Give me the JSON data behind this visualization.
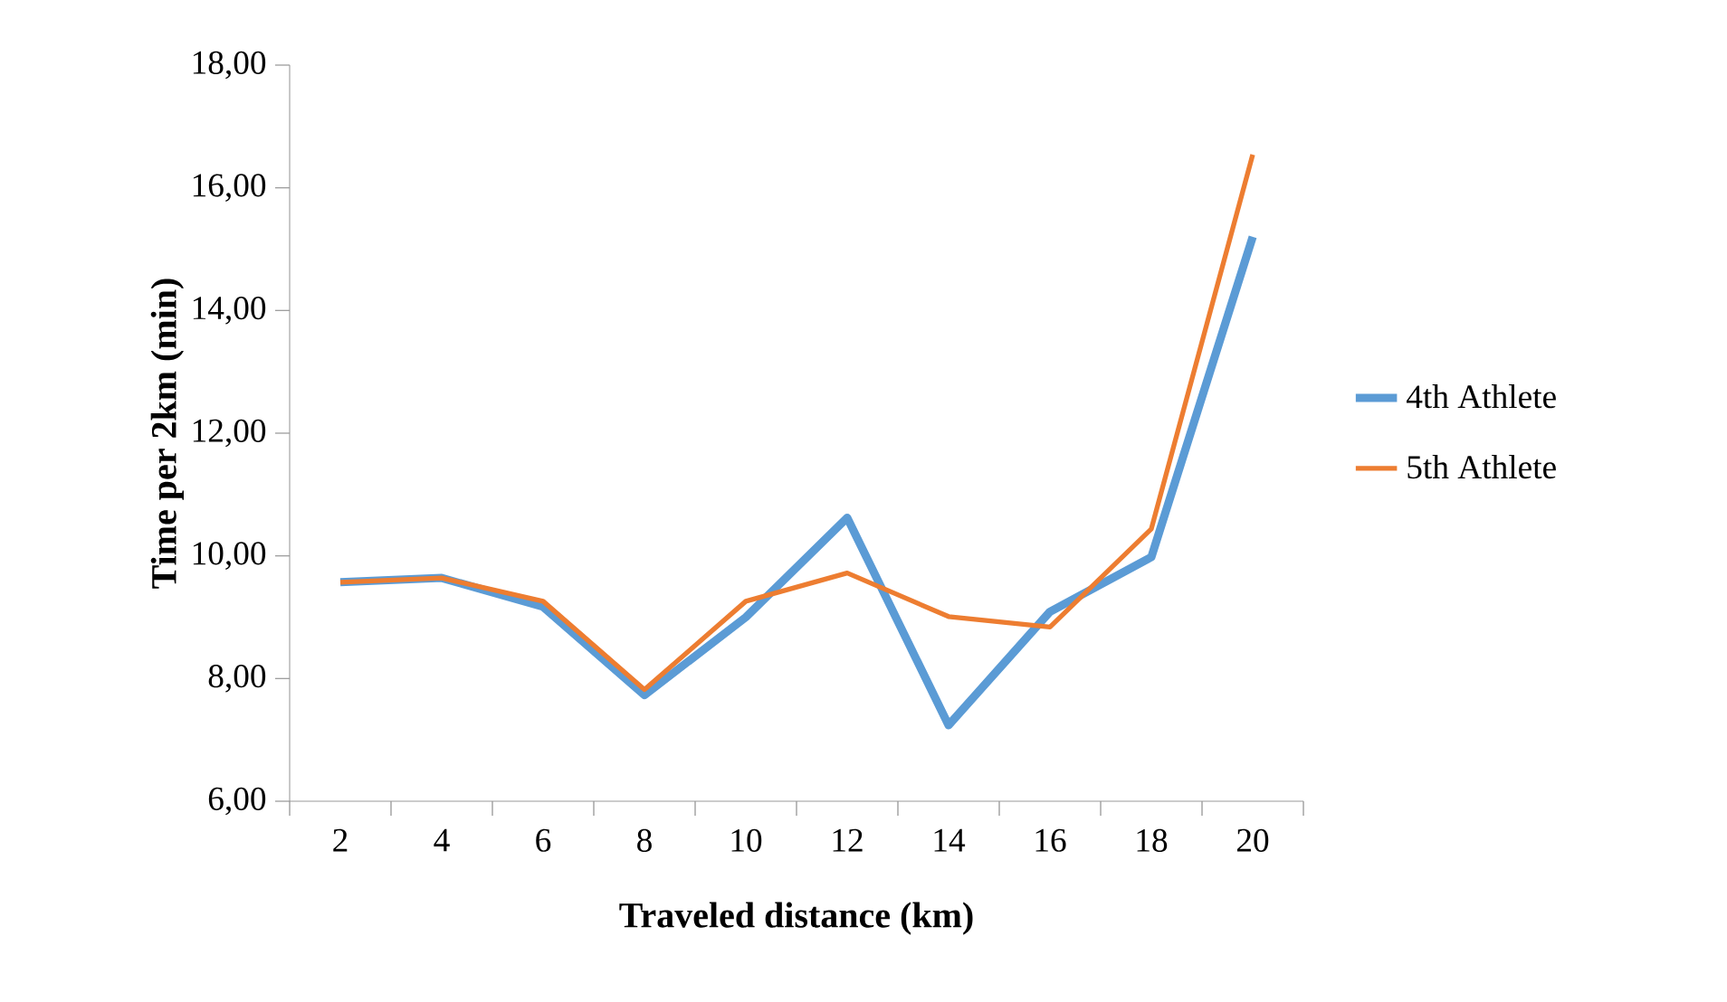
{
  "chart_data": {
    "type": "line",
    "xlabel": "Traveled distance (km)",
    "ylabel": "Time per 2km (min)",
    "categories": [
      "2",
      "4",
      "6",
      "8",
      "10",
      "12",
      "14",
      "16",
      "18",
      "20"
    ],
    "series": [
      {
        "name": "4th Athlete",
        "color": "#5b9bd5",
        "values": [
          9.57,
          9.64,
          9.17,
          7.73,
          9.0,
          10.62,
          7.24,
          9.09,
          9.98,
          15.2
        ]
      },
      {
        "name": "5th Athlete",
        "color": "#ed7d31",
        "values": [
          9.57,
          9.64,
          9.26,
          7.82,
          9.26,
          9.72,
          9.01,
          8.84,
          10.44,
          16.54
        ]
      }
    ],
    "ylim": [
      6,
      18
    ],
    "yticks": [
      {
        "value": 6,
        "label": "6,00"
      },
      {
        "value": 8,
        "label": "8,00"
      },
      {
        "value": 10,
        "label": "10,00"
      },
      {
        "value": 12,
        "label": "12,00"
      },
      {
        "value": 14,
        "label": "14,00"
      },
      {
        "value": 16,
        "label": "16,00"
      },
      {
        "value": 18,
        "label": "18,00"
      }
    ],
    "legend": "right"
  }
}
